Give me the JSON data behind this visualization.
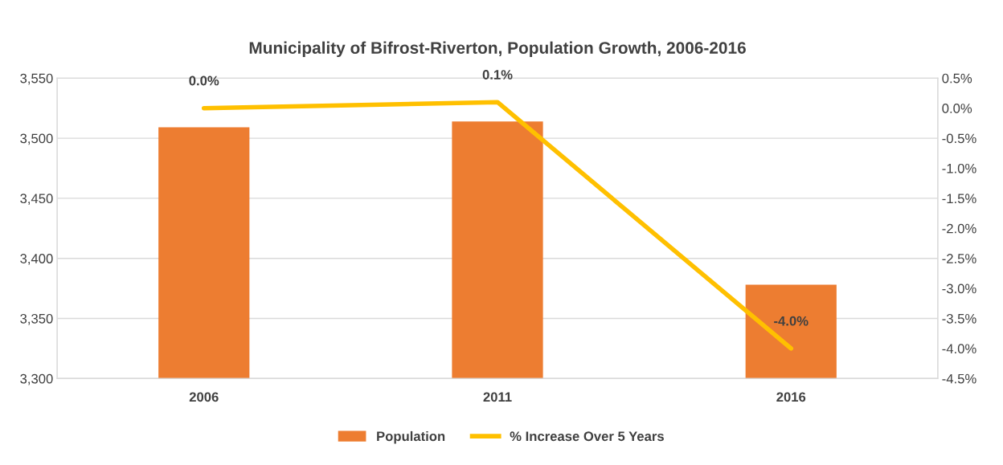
{
  "chart_data": {
    "type": "bar",
    "title": "Municipality of Bifrost-Riverton, Population Growth, 2006-2016",
    "categories": [
      "2006",
      "2011",
      "2016"
    ],
    "series": [
      {
        "name": "Population",
        "color": "#ed7d31",
        "values": [
          3509,
          3514,
          3378
        ]
      },
      {
        "name": "% Increase Over 5 Years",
        "type": "line",
        "axis": "y2",
        "color": "#ffc000",
        "values": [
          0.0,
          0.1,
          -4.0
        ],
        "value_labels": [
          "0.0%",
          "0.1%",
          "-4.0%"
        ]
      }
    ],
    "ylim": [
      3300,
      3550
    ],
    "yticks": [
      {
        "value": 3300,
        "label": "3,300"
      },
      {
        "value": 3350,
        "label": "3,350"
      },
      {
        "value": 3400,
        "label": "3,400"
      },
      {
        "value": 3450,
        "label": "3,450"
      },
      {
        "value": 3500,
        "label": "3,500"
      },
      {
        "value": 3550,
        "label": "3,550"
      }
    ],
    "y2lim": [
      -4.5,
      0.5
    ],
    "y2ticks": [
      {
        "value": -4.5,
        "label": "-4.5%"
      },
      {
        "value": -4.0,
        "label": "-4.0%"
      },
      {
        "value": -3.5,
        "label": "-3.5%"
      },
      {
        "value": -3.0,
        "label": "-3.0%"
      },
      {
        "value": -2.5,
        "label": "-2.5%"
      },
      {
        "value": -2.0,
        "label": "-2.0%"
      },
      {
        "value": -1.5,
        "label": "-1.5%"
      },
      {
        "value": -1.0,
        "label": "-1.0%"
      },
      {
        "value": -0.5,
        "label": "-0.5%"
      },
      {
        "value": 0.0,
        "label": "0.0%"
      },
      {
        "value": 0.5,
        "label": "0.5%"
      }
    ],
    "grid": "y",
    "legend": "bottom"
  }
}
